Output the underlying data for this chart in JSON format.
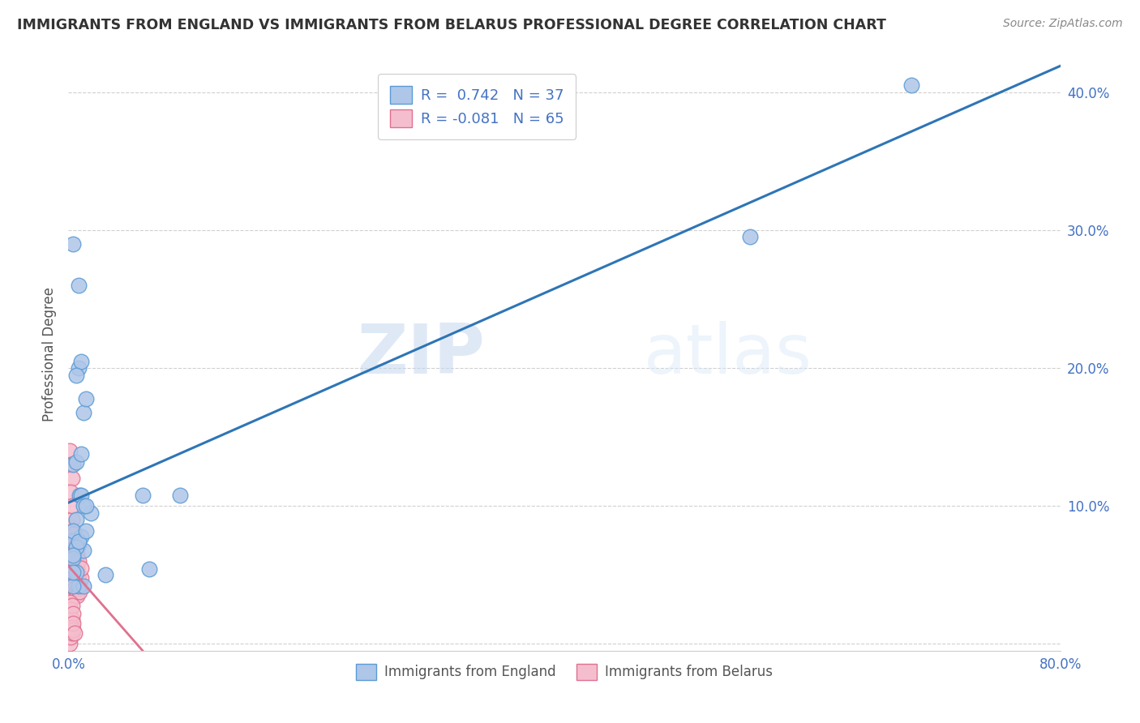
{
  "title": "IMMIGRANTS FROM ENGLAND VS IMMIGRANTS FROM BELARUS PROFESSIONAL DEGREE CORRELATION CHART",
  "source": "Source: ZipAtlas.com",
  "ylabel": "Professional Degree",
  "xlim": [
    0.0,
    0.8
  ],
  "ylim": [
    -0.005,
    0.425
  ],
  "xticks": [
    0.0,
    0.1,
    0.2,
    0.3,
    0.4,
    0.5,
    0.6,
    0.7,
    0.8
  ],
  "xtick_labels": [
    "0.0%",
    "",
    "",
    "",
    "",
    "",
    "",
    "",
    "80.0%"
  ],
  "yticks": [
    0.0,
    0.1,
    0.2,
    0.3,
    0.4
  ],
  "ytick_labels": [
    "",
    "10.0%",
    "20.0%",
    "30.0%",
    "40.0%"
  ],
  "england_color": "#aec6e8",
  "england_edge_color": "#5b9bd5",
  "belarus_color": "#f5bece",
  "belarus_edge_color": "#e07090",
  "england_line_color": "#2e75b6",
  "belarus_line_color": "#e07090",
  "watermark_zip": "ZIP",
  "watermark_atlas": "atlas",
  "legend_england_R": "0.742",
  "legend_england_N": "37",
  "legend_belarus_R": "-0.081",
  "legend_belarus_N": "65",
  "eng_x": [
    0.003,
    0.004,
    0.006,
    0.008,
    0.01,
    0.012,
    0.014,
    0.018,
    0.008,
    0.004,
    0.006,
    0.009,
    0.01,
    0.012,
    0.014,
    0.06,
    0.09,
    0.006,
    0.008,
    0.012,
    0.01,
    0.004,
    0.006,
    0.008,
    0.55,
    0.014,
    0.68,
    0.004,
    0.004,
    0.01,
    0.008,
    0.012,
    0.004,
    0.006,
    0.03,
    0.065,
    0.004
  ],
  "eng_y": [
    0.075,
    0.13,
    0.09,
    0.2,
    0.205,
    0.168,
    0.178,
    0.095,
    0.26,
    0.29,
    0.195,
    0.108,
    0.108,
    0.1,
    0.1,
    0.108,
    0.108,
    0.132,
    0.072,
    0.068,
    0.078,
    0.082,
    0.07,
    0.074,
    0.295,
    0.082,
    0.405,
    0.062,
    0.064,
    0.138,
    0.042,
    0.042,
    0.042,
    0.052,
    0.05,
    0.054,
    0.052
  ],
  "bel_x": [
    0.001,
    0.001,
    0.001,
    0.001,
    0.002,
    0.002,
    0.002,
    0.002,
    0.002,
    0.003,
    0.003,
    0.003,
    0.003,
    0.003,
    0.003,
    0.003,
    0.003,
    0.004,
    0.004,
    0.004,
    0.004,
    0.004,
    0.004,
    0.004,
    0.005,
    0.005,
    0.005,
    0.005,
    0.005,
    0.006,
    0.006,
    0.006,
    0.006,
    0.006,
    0.007,
    0.007,
    0.007,
    0.007,
    0.008,
    0.008,
    0.008,
    0.009,
    0.009,
    0.01,
    0.01,
    0.001,
    0.001,
    0.001,
    0.002,
    0.002,
    0.003,
    0.003,
    0.004,
    0.001,
    0.002,
    0.003,
    0.003,
    0.004,
    0.004,
    0.005,
    0.001,
    0.002,
    0.003,
    0.002,
    0.003
  ],
  "bel_y": [
    0.07,
    0.06,
    0.05,
    0.08,
    0.065,
    0.055,
    0.045,
    0.075,
    0.085,
    0.062,
    0.058,
    0.07,
    0.078,
    0.09,
    0.048,
    0.052,
    0.04,
    0.055,
    0.065,
    0.072,
    0.082,
    0.042,
    0.048,
    0.038,
    0.06,
    0.07,
    0.08,
    0.045,
    0.035,
    0.05,
    0.06,
    0.07,
    0.038,
    0.042,
    0.048,
    0.055,
    0.065,
    0.035,
    0.04,
    0.05,
    0.06,
    0.045,
    0.038,
    0.048,
    0.055,
    0.01,
    0.02,
    0.03,
    0.015,
    0.025,
    0.018,
    0.028,
    0.022,
    0.0,
    0.005,
    0.008,
    0.012,
    0.01,
    0.015,
    0.008,
    0.14,
    0.13,
    0.12,
    0.11,
    0.1
  ]
}
